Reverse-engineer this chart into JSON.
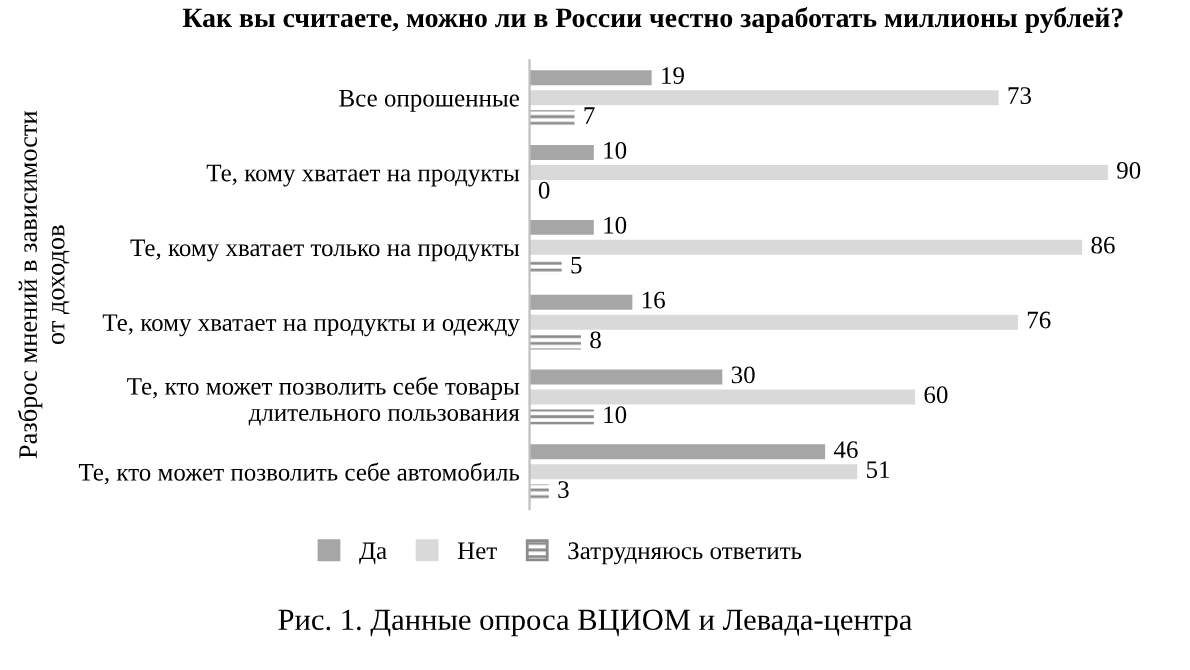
{
  "chart_data": {
    "type": "bar",
    "orientation": "horizontal",
    "title": "Как вы считаете, можно ли в России честно заработать миллионы рублей?",
    "ylabel": "Разброс мнений в зависимости\nот доходов",
    "categories": [
      "Все опрошенные",
      "Те, кому хватает на продукты",
      "Те, кому хватает только на продукты",
      "Те, кому хватает на продукты и одежду",
      "Те, кто может позволить себе товары\nдлительного пользования",
      "Те, кто может позволить себе автомобиль"
    ],
    "series": [
      {
        "name": "Да",
        "color": "#a6a6a6",
        "values": [
          19,
          10,
          10,
          16,
          30,
          46
        ]
      },
      {
        "name": "Нет",
        "color": "#d9d9d9",
        "values": [
          73,
          90,
          86,
          76,
          60,
          51
        ]
      },
      {
        "name": "Затрудняюсь ответить",
        "color": "#8c8c8c",
        "values": [
          7,
          0,
          5,
          8,
          10,
          3
        ]
      }
    ],
    "data_labels": true,
    "legend": "bottom",
    "tick_labels": "y",
    "grid": false,
    "annotations": [
      "Рис. 1. Данные опроса ВЦИОМ и Левада-центра"
    ]
  }
}
